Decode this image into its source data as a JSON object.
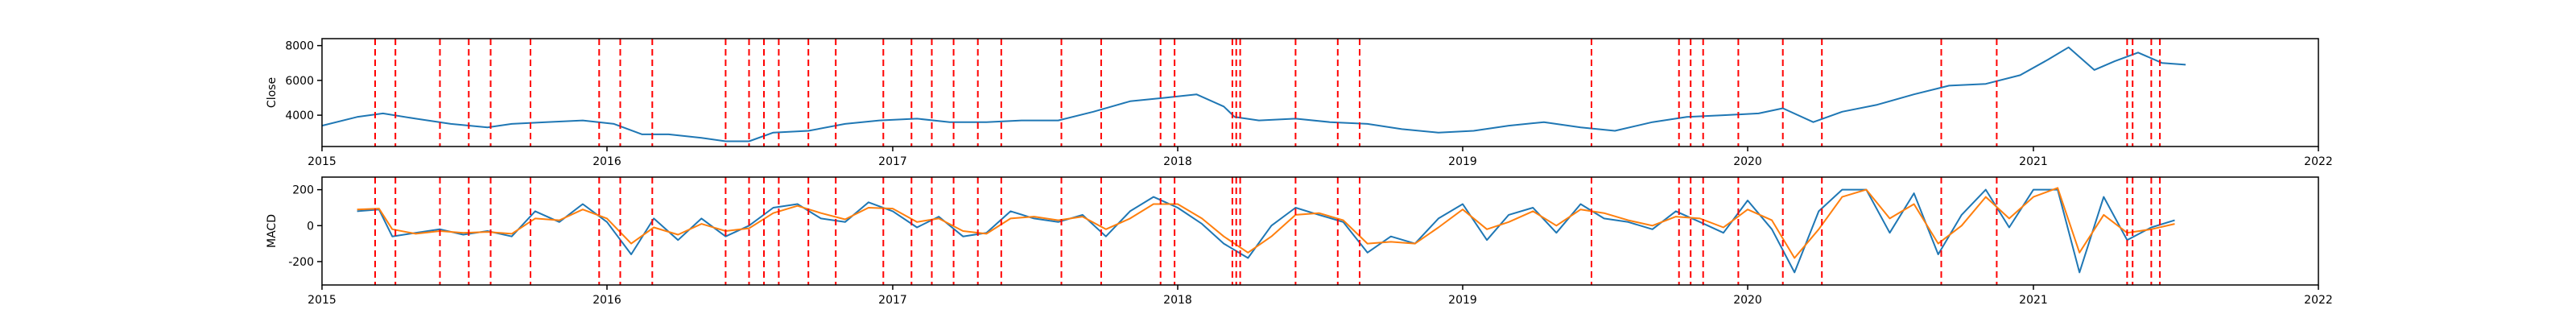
{
  "chart_data": [
    {
      "type": "line",
      "ylabel": "Close",
      "xlim": [
        "2015-01-01",
        "2022-01-01"
      ],
      "ylim": [
        2200,
        8400
      ],
      "x_ticks": [
        "2015",
        "2016",
        "2017",
        "2018",
        "2019",
        "2020",
        "2021",
        "2022"
      ],
      "y_ticks": [
        4000,
        6000,
        8000
      ],
      "grid": false,
      "series": [
        {
          "color": "#1f77b4",
          "x": [
            "2015-01-01",
            "2015-02-15",
            "2015-03-20",
            "2015-05-01",
            "2015-06-15",
            "2015-08-01",
            "2015-09-01",
            "2015-10-15",
            "2015-12-01",
            "2016-01-10",
            "2016-02-15",
            "2016-03-20",
            "2016-05-01",
            "2016-06-01",
            "2016-07-01",
            "2016-08-01",
            "2016-09-15",
            "2016-11-01",
            "2016-12-15",
            "2017-02-01",
            "2017-03-15",
            "2017-05-01",
            "2017-06-15",
            "2017-08-01",
            "2017-09-15",
            "2017-11-01",
            "2017-12-15",
            "2018-01-25",
            "2018-03-01",
            "2018-03-15",
            "2018-04-15",
            "2018-06-01",
            "2018-07-15",
            "2018-09-01",
            "2018-10-15",
            "2018-12-01",
            "2019-01-15",
            "2019-03-01",
            "2019-04-15",
            "2019-06-01",
            "2019-07-15",
            "2019-09-01",
            "2019-10-15",
            "2019-12-01",
            "2020-01-15",
            "2020-02-15",
            "2020-03-25",
            "2020-05-01",
            "2020-06-15",
            "2020-08-01",
            "2020-09-15",
            "2020-11-01",
            "2020-12-15",
            "2021-01-20",
            "2021-02-15",
            "2021-03-20",
            "2021-04-15",
            "2021-05-15",
            "2021-06-15",
            "2021-07-15"
          ],
          "y": [
            3400,
            3900,
            4100,
            3800,
            3500,
            3300,
            3500,
            3600,
            3700,
            3500,
            2900,
            2900,
            2700,
            2500,
            2500,
            3000,
            3100,
            3500,
            3700,
            3800,
            3600,
            3600,
            3700,
            3700,
            4200,
            4800,
            5000,
            5200,
            4500,
            3900,
            3700,
            3800,
            3600,
            3500,
            3200,
            3000,
            3100,
            3400,
            3600,
            3300,
            3100,
            3600,
            3900,
            4000,
            4100,
            4400,
            3600,
            4200,
            4600,
            5200,
            5700,
            5800,
            6300,
            7200,
            7900,
            6600,
            7100,
            7600,
            7000,
            6900
          ]
        }
      ]
    },
    {
      "type": "line",
      "ylabel": "MACD",
      "xlim": [
        "2015-01-01",
        "2022-01-01"
      ],
      "ylim": [
        -330,
        270
      ],
      "x_ticks": [
        "2015",
        "2016",
        "2017",
        "2018",
        "2019",
        "2020",
        "2021",
        "2022"
      ],
      "y_ticks": [
        -200,
        0,
        200
      ],
      "grid": false,
      "series": [
        {
          "color": "#1f77b4",
          "x": [
            "2015-02-15",
            "2015-03-15",
            "2015-04-01",
            "2015-05-01",
            "2015-06-01",
            "2015-07-01",
            "2015-08-01",
            "2015-09-01",
            "2015-10-01",
            "2015-11-01",
            "2015-12-01",
            "2016-01-01",
            "2016-02-01",
            "2016-03-01",
            "2016-04-01",
            "2016-05-01",
            "2016-06-01",
            "2016-07-01",
            "2016-08-01",
            "2016-09-01",
            "2016-10-01",
            "2016-11-01",
            "2016-12-01",
            "2017-01-01",
            "2017-02-01",
            "2017-03-01",
            "2017-04-01",
            "2017-05-01",
            "2017-06-01",
            "2017-07-01",
            "2017-08-01",
            "2017-09-01",
            "2017-10-01",
            "2017-11-01",
            "2017-12-01",
            "2018-01-01",
            "2018-02-01",
            "2018-03-01",
            "2018-04-01",
            "2018-05-01",
            "2018-06-01",
            "2018-07-01",
            "2018-08-01",
            "2018-09-01",
            "2018-10-01",
            "2018-11-01",
            "2018-12-01",
            "2019-01-01",
            "2019-02-01",
            "2019-03-01",
            "2019-04-01",
            "2019-05-01",
            "2019-06-01",
            "2019-07-01",
            "2019-08-01",
            "2019-09-01",
            "2019-10-01",
            "2019-11-01",
            "2019-12-01",
            "2020-01-01",
            "2020-02-01",
            "2020-03-01",
            "2020-04-01",
            "2020-05-01",
            "2020-06-01",
            "2020-07-01",
            "2020-08-01",
            "2020-09-01",
            "2020-10-01",
            "2020-11-01",
            "2020-12-01",
            "2021-01-01",
            "2021-02-01",
            "2021-03-01",
            "2021-04-01",
            "2021-05-01",
            "2021-06-01",
            "2021-07-01"
          ],
          "y": [
            80,
            90,
            -60,
            -40,
            -20,
            -50,
            -30,
            -60,
            80,
            20,
            120,
            20,
            -160,
            40,
            -80,
            40,
            -60,
            0,
            100,
            120,
            40,
            20,
            130,
            80,
            -10,
            50,
            -60,
            -40,
            80,
            40,
            20,
            60,
            -60,
            80,
            160,
            100,
            10,
            -100,
            -180,
            0,
            100,
            60,
            20,
            -150,
            -60,
            -100,
            40,
            120,
            -80,
            60,
            100,
            -40,
            120,
            40,
            20,
            -20,
            80,
            20,
            -40,
            140,
            -20,
            -260,
            80,
            200,
            200,
            -40,
            180,
            -160,
            60,
            200,
            -10,
            200,
            200,
            -260,
            160,
            -80,
            -10,
            30
          ]
        },
        {
          "color": "#ff7f0e",
          "x": [
            "2015-02-15",
            "2015-03-15",
            "2015-04-01",
            "2015-05-01",
            "2015-06-01",
            "2015-07-01",
            "2015-08-01",
            "2015-09-01",
            "2015-10-01",
            "2015-11-01",
            "2015-12-01",
            "2016-01-01",
            "2016-02-01",
            "2016-03-01",
            "2016-04-01",
            "2016-05-01",
            "2016-06-01",
            "2016-07-01",
            "2016-08-01",
            "2016-09-01",
            "2016-10-01",
            "2016-11-01",
            "2016-12-01",
            "2017-01-01",
            "2017-02-01",
            "2017-03-01",
            "2017-04-01",
            "2017-05-01",
            "2017-06-01",
            "2017-07-01",
            "2017-08-01",
            "2017-09-01",
            "2017-10-01",
            "2017-11-01",
            "2017-12-01",
            "2018-01-01",
            "2018-02-01",
            "2018-03-01",
            "2018-04-01",
            "2018-05-01",
            "2018-06-01",
            "2018-07-01",
            "2018-08-01",
            "2018-09-01",
            "2018-10-01",
            "2018-11-01",
            "2018-12-01",
            "2019-01-01",
            "2019-02-01",
            "2019-03-01",
            "2019-04-01",
            "2019-05-01",
            "2019-06-01",
            "2019-07-01",
            "2019-08-01",
            "2019-09-01",
            "2019-10-01",
            "2019-11-01",
            "2019-12-01",
            "2020-01-01",
            "2020-02-01",
            "2020-03-01",
            "2020-04-01",
            "2020-05-01",
            "2020-06-01",
            "2020-07-01",
            "2020-08-01",
            "2020-09-01",
            "2020-10-01",
            "2020-11-01",
            "2020-12-01",
            "2021-01-01",
            "2021-02-01",
            "2021-03-01",
            "2021-04-01",
            "2021-05-01",
            "2021-06-01",
            "2021-07-01"
          ],
          "y": [
            90,
            95,
            -20,
            -45,
            -30,
            -40,
            -35,
            -45,
            40,
            30,
            90,
            40,
            -100,
            -10,
            -50,
            10,
            -30,
            -15,
            70,
            110,
            70,
            35,
            100,
            95,
            20,
            40,
            -30,
            -45,
            40,
            50,
            30,
            50,
            -20,
            40,
            120,
            120,
            40,
            -60,
            -150,
            -60,
            60,
            70,
            30,
            -100,
            -90,
            -100,
            -10,
            90,
            -20,
            20,
            80,
            0,
            90,
            70,
            30,
            0,
            50,
            40,
            -10,
            90,
            30,
            -180,
            -20,
            160,
            200,
            40,
            120,
            -100,
            0,
            160,
            40,
            160,
            210,
            -150,
            60,
            -40,
            -20,
            10
          ]
        }
      ]
    }
  ],
  "vlines": {
    "color": "#ff0000",
    "dates": [
      "2015-03-10",
      "2015-04-05",
      "2015-06-01",
      "2015-07-08",
      "2015-08-05",
      "2015-09-25",
      "2015-12-22",
      "2016-01-18",
      "2016-02-28",
      "2016-06-01",
      "2016-07-01",
      "2016-07-20",
      "2016-08-08",
      "2016-09-15",
      "2016-10-20",
      "2016-12-20",
      "2017-01-25",
      "2017-02-20",
      "2017-03-20",
      "2017-04-20",
      "2017-05-20",
      "2017-08-05",
      "2017-09-25",
      "2017-12-10",
      "2017-12-28",
      "2018-03-12",
      "2018-03-17",
      "2018-03-22",
      "2018-06-01",
      "2018-07-25",
      "2018-08-22",
      "2019-06-15",
      "2019-10-05",
      "2019-10-20",
      "2019-11-05",
      "2019-12-20",
      "2020-02-15",
      "2020-04-05",
      "2020-09-05",
      "2020-11-15",
      "2021-05-01",
      "2021-05-08",
      "2021-06-01",
      "2021-06-12"
    ]
  }
}
